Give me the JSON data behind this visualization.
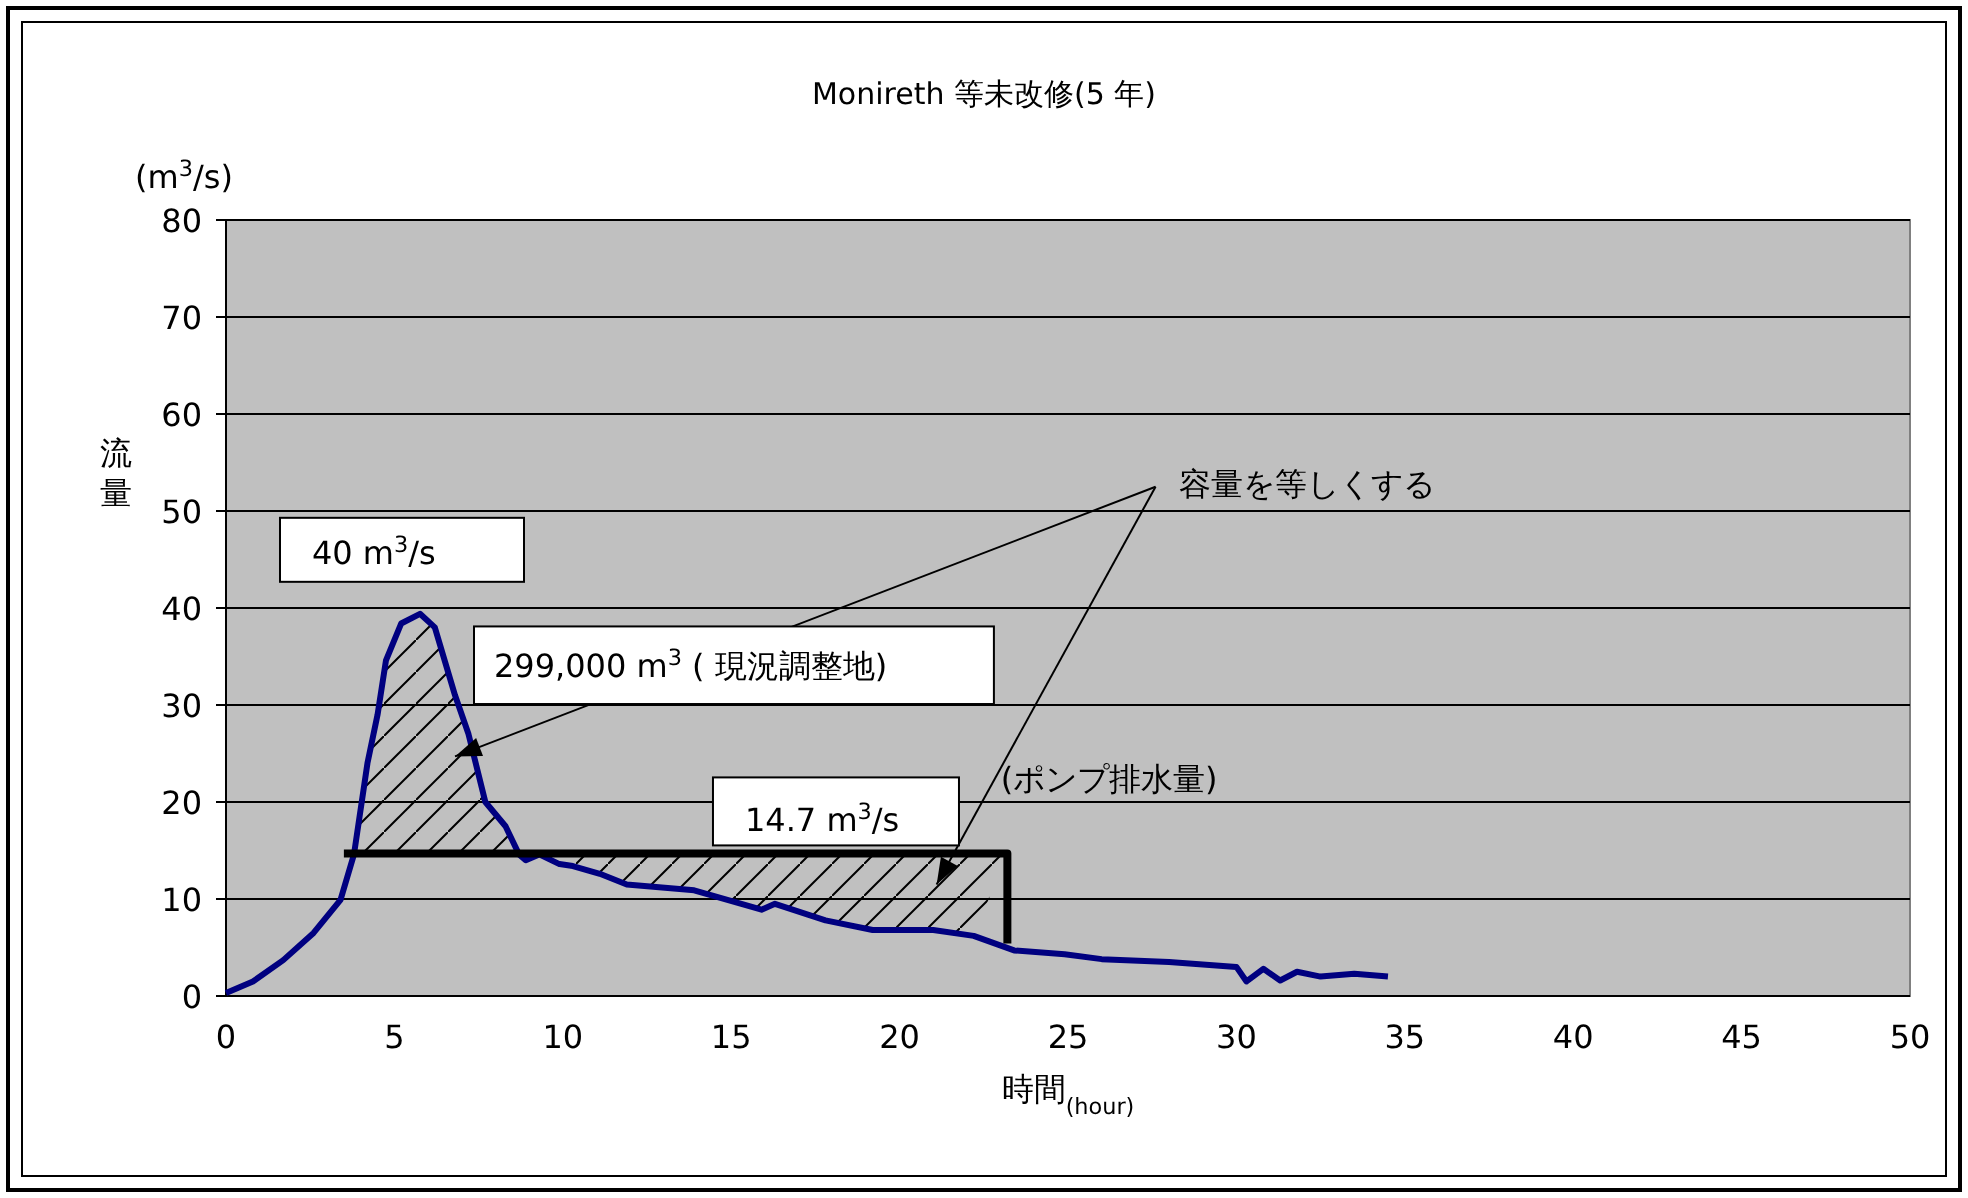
{
  "chart_data": {
    "type": "line",
    "title": "Monireth 等未改修(5 年)",
    "xlabel": "時間$_{(hour)}$",
    "ylabel": "流量",
    "xlim": [
      0,
      50
    ],
    "xticks": [
      0,
      5,
      10,
      15,
      20,
      25,
      30,
      35,
      40,
      45,
      50
    ],
    "ylim": [
      0,
      80
    ],
    "yticks": [
      0,
      10,
      20,
      30,
      40,
      50,
      60,
      70,
      80
    ],
    "grid": "y",
    "marker": "none",
    "line_style": "solid",
    "series": [
      {
        "color": "#000080",
        "x": [
          0,
          0.8,
          1.7,
          2.6,
          3.4,
          3.8,
          4.2,
          4.5,
          4.75,
          5.2,
          5.76,
          6.2,
          6.8,
          7.2,
          7.7,
          8.3,
          8.7,
          8.9,
          9.3,
          9.9,
          10.3,
          11.1,
          11.9,
          13.9,
          15.9,
          16.3,
          17.8,
          19.2,
          21,
          22.2,
          23.4,
          24.9,
          26,
          28,
          30,
          30.3,
          30.8,
          31.3,
          31.8,
          32.5,
          33.5,
          34.5
        ],
        "values": [
          0.3,
          1.5,
          3.7,
          6.5,
          9.9,
          14.6,
          24,
          29,
          34.6,
          38.4,
          39.4,
          38,
          31,
          27,
          20,
          17.5,
          14.6,
          14,
          14.6,
          13.6,
          13.4,
          12.6,
          11.5,
          10.9,
          8.9,
          9.5,
          7.8,
          6.8,
          6.8,
          6.2,
          4.7,
          4.3,
          3.8,
          3.5,
          3,
          1.5,
          2.8,
          1.6,
          2.5,
          2,
          2.3,
          2
        ]
      },
      {
        "color": "#000000",
        "x": [
          3.5,
          23.2,
          23.2
        ],
        "values": [
          14.7,
          14.7,
          5.4
        ]
      }
    ],
    "annotations": [
      "(m$^{3}$/s)",
      {
        "text": "40 m$^{3}$/s",
        "x": 5.76,
        "y": 39.4
      },
      "299,000 m$^{3}$ ( 現況調整地)",
      {
        "text": "14.7 m$^{3}$/s",
        "x": 18.2,
        "y": 14.7
      },
      "(ポンプ排水量)",
      "容量を等しくする"
    ]
  }
}
